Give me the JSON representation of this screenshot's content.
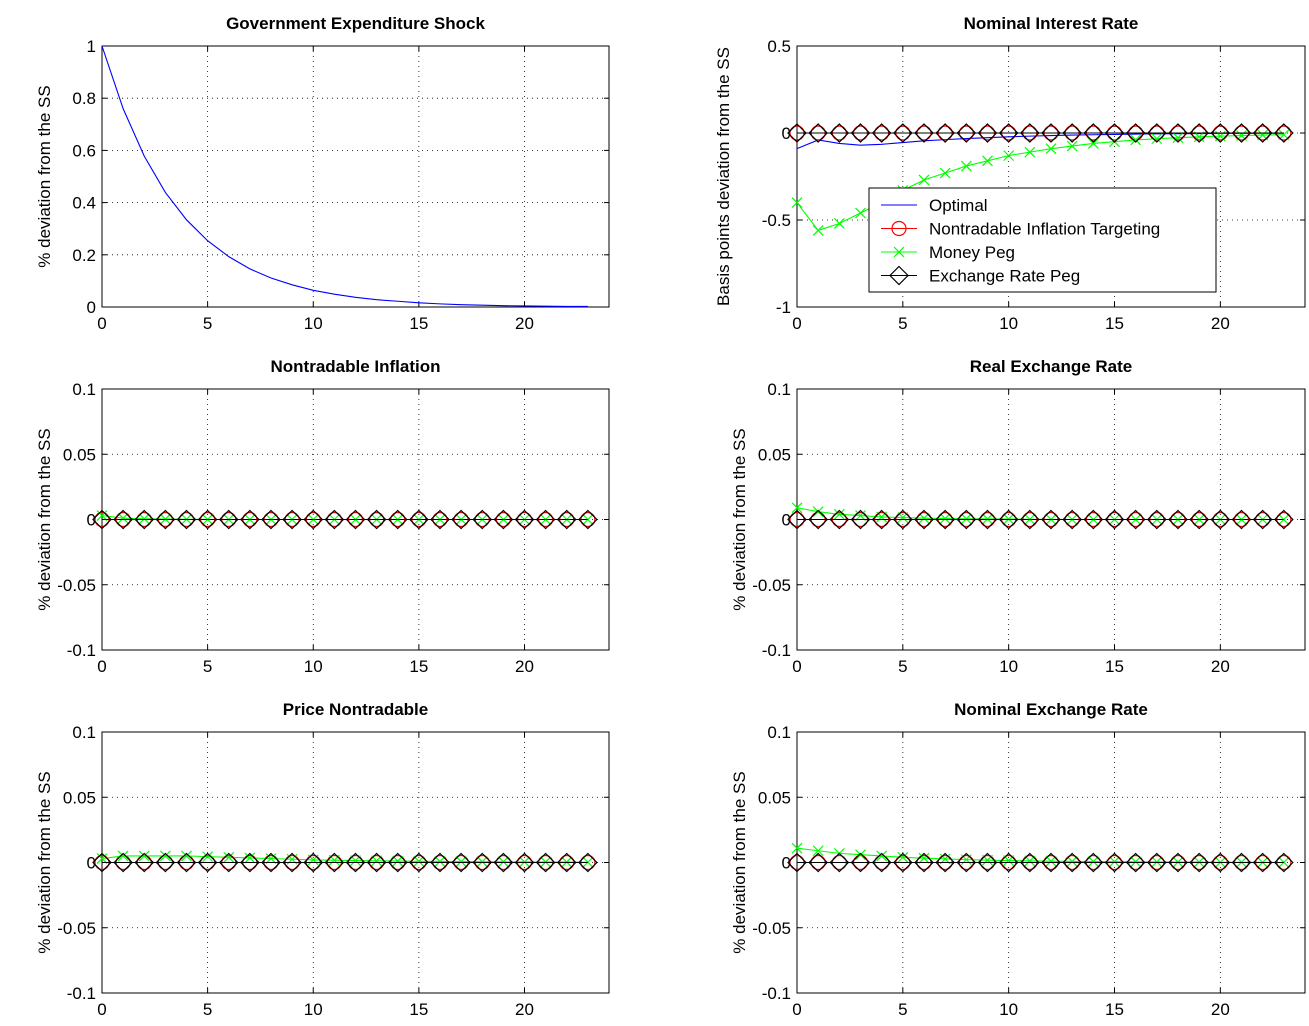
{
  "series_styles": {
    "Optimal": {
      "color": "#0000ff",
      "marker": "none"
    },
    "Nontradable Inflation Targeting": {
      "color": "#ff0000",
      "marker": "circle"
    },
    "Money Peg": {
      "color": "#00ff00",
      "marker": "x"
    },
    "Exchange Rate Peg": {
      "color": "#000000",
      "marker": "diamond"
    }
  },
  "legend": {
    "entries": [
      "Optimal",
      "Nontradable Inflation Targeting",
      "Money Peg",
      "Exchange Rate Peg"
    ],
    "placement": "inside-bottom-center of Nominal Interest Rate panel"
  },
  "chart_data": [
    {
      "type": "line",
      "title": "Government Expenditure Shock",
      "xlabel": "",
      "ylabel": "% deviation from the SS",
      "xlim": [
        0,
        24
      ],
      "ylim": [
        0,
        1
      ],
      "xticks": [
        0,
        5,
        10,
        15,
        20
      ],
      "yticks": [
        0,
        0.2,
        0.4,
        0.6,
        0.8,
        1
      ],
      "ytick_labels": [
        "0",
        "0.2",
        "0.4",
        "0.6",
        "0.8",
        "1"
      ],
      "grid": true,
      "x": [
        0,
        1,
        2,
        3,
        4,
        5,
        6,
        7,
        8,
        9,
        10,
        11,
        12,
        13,
        14,
        15,
        16,
        17,
        18,
        19,
        20,
        21,
        22,
        23
      ],
      "series": [
        {
          "name": "Optimal",
          "values": [
            1,
            0.76,
            0.578,
            0.439,
            0.334,
            0.254,
            0.193,
            0.146,
            0.111,
            0.085,
            0.064,
            0.049,
            0.037,
            0.028,
            0.022,
            0.016,
            0.012,
            0.009,
            0.007,
            0.005,
            0.004,
            0.003,
            0.002,
            0.002
          ]
        }
      ]
    },
    {
      "type": "line",
      "title": "Nominal Interest Rate",
      "xlabel": "",
      "ylabel": "Basis points deviation from the SS",
      "xlim": [
        0,
        24
      ],
      "ylim": [
        -1,
        0.5
      ],
      "xticks": [
        0,
        5,
        10,
        15,
        20
      ],
      "yticks": [
        -1,
        -0.5,
        0,
        0.5
      ],
      "ytick_labels": [
        "-1",
        "-0.5",
        "0",
        "0.5"
      ],
      "grid": true,
      "legend": true,
      "x": [
        0,
        1,
        2,
        3,
        4,
        5,
        6,
        7,
        8,
        9,
        10,
        11,
        12,
        13,
        14,
        15,
        16,
        17,
        18,
        19,
        20,
        21,
        22,
        23
      ],
      "series": [
        {
          "name": "Optimal",
          "values": [
            -0.09,
            -0.04,
            -0.06,
            -0.07,
            -0.065,
            -0.055,
            -0.045,
            -0.038,
            -0.032,
            -0.027,
            -0.022,
            -0.018,
            -0.015,
            -0.012,
            -0.01,
            -0.008,
            -0.006,
            -0.005,
            -0.004,
            -0.003,
            -0.002,
            -0.002,
            -0.001,
            -0.001
          ]
        },
        {
          "name": "Nontradable Inflation Targeting",
          "values": [
            0,
            0,
            0,
            0,
            0,
            0,
            0,
            0,
            0,
            0,
            0,
            0,
            0,
            0,
            0,
            0,
            0,
            0,
            0,
            0,
            0,
            0,
            0,
            0
          ]
        },
        {
          "name": "Money Peg",
          "values": [
            -0.4,
            -0.56,
            -0.52,
            -0.46,
            -0.4,
            -0.33,
            -0.27,
            -0.23,
            -0.19,
            -0.16,
            -0.13,
            -0.11,
            -0.09,
            -0.075,
            -0.06,
            -0.05,
            -0.04,
            -0.033,
            -0.027,
            -0.022,
            -0.018,
            -0.015,
            -0.012,
            -0.01
          ]
        },
        {
          "name": "Exchange Rate Peg",
          "values": [
            0,
            0,
            0,
            0,
            0,
            0,
            0,
            0,
            0,
            0,
            0,
            0,
            0,
            0,
            0,
            0,
            0,
            0,
            0,
            0,
            0,
            0,
            0,
            0
          ]
        }
      ]
    },
    {
      "type": "line",
      "title": "Nontradable Inflation",
      "xlabel": "",
      "ylabel": "% deviation from the SS",
      "xlim": [
        0,
        24
      ],
      "ylim": [
        -0.1,
        0.1
      ],
      "xticks": [
        0,
        5,
        10,
        15,
        20
      ],
      "yticks": [
        -0.1,
        -0.05,
        0,
        0.05,
        0.1
      ],
      "ytick_labels": [
        "-0.1",
        "-0.05",
        "0",
        "0.05",
        "0.1"
      ],
      "grid": true,
      "x": [
        0,
        1,
        2,
        3,
        4,
        5,
        6,
        7,
        8,
        9,
        10,
        11,
        12,
        13,
        14,
        15,
        16,
        17,
        18,
        19,
        20,
        21,
        22,
        23
      ],
      "series": [
        {
          "name": "Optimal",
          "values": [
            0,
            0,
            0,
            0,
            0,
            0,
            0,
            0,
            0,
            0,
            0,
            0,
            0,
            0,
            0,
            0,
            0,
            0,
            0,
            0,
            0,
            0,
            0,
            0
          ]
        },
        {
          "name": "Nontradable Inflation Targeting",
          "values": [
            0,
            0,
            0,
            0,
            0,
            0,
            0,
            0,
            0,
            0,
            0,
            0,
            0,
            0,
            0,
            0,
            0,
            0,
            0,
            0,
            0,
            0,
            0,
            0
          ]
        },
        {
          "name": "Money Peg",
          "values": [
            0.003,
            0.001,
            0.0005,
            0.0003,
            0.0002,
            0.0001,
            0,
            0,
            0,
            0,
            0,
            0,
            0,
            0,
            0,
            0,
            0,
            0,
            0,
            0,
            0,
            0,
            0,
            0
          ]
        },
        {
          "name": "Exchange Rate Peg",
          "values": [
            0,
            0,
            0,
            0,
            0,
            0,
            0,
            0,
            0,
            0,
            0,
            0,
            0,
            0,
            0,
            0,
            0,
            0,
            0,
            0,
            0,
            0,
            0,
            0
          ]
        }
      ]
    },
    {
      "type": "line",
      "title": "Real Exchange Rate",
      "xlabel": "",
      "ylabel": "% deviation from the SS",
      "xlim": [
        0,
        24
      ],
      "ylim": [
        -0.1,
        0.1
      ],
      "xticks": [
        0,
        5,
        10,
        15,
        20
      ],
      "yticks": [
        -0.1,
        -0.05,
        0,
        0.05,
        0.1
      ],
      "ytick_labels": [
        "-0.1",
        "-0.05",
        "0",
        "0.05",
        "0.1"
      ],
      "grid": true,
      "x": [
        0,
        1,
        2,
        3,
        4,
        5,
        6,
        7,
        8,
        9,
        10,
        11,
        12,
        13,
        14,
        15,
        16,
        17,
        18,
        19,
        20,
        21,
        22,
        23
      ],
      "series": [
        {
          "name": "Optimal",
          "values": [
            0,
            0,
            0,
            0,
            0,
            0,
            0,
            0,
            0,
            0,
            0,
            0,
            0,
            0,
            0,
            0,
            0,
            0,
            0,
            0,
            0,
            0,
            0,
            0
          ]
        },
        {
          "name": "Nontradable Inflation Targeting",
          "values": [
            0,
            0,
            0,
            0,
            0,
            0,
            0,
            0,
            0,
            0,
            0,
            0,
            0,
            0,
            0,
            0,
            0,
            0,
            0,
            0,
            0,
            0,
            0,
            0
          ]
        },
        {
          "name": "Money Peg",
          "values": [
            0.009,
            0.006,
            0.004,
            0.003,
            0.002,
            0.0015,
            0.001,
            0.0007,
            0.0005,
            0.0004,
            0.0003,
            0.0002,
            0.0001,
            0,
            0,
            0,
            0,
            0,
            0,
            0,
            0,
            0,
            0,
            0
          ]
        },
        {
          "name": "Exchange Rate Peg",
          "values": [
            0,
            0,
            0,
            0,
            0,
            0,
            0,
            0,
            0,
            0,
            0,
            0,
            0,
            0,
            0,
            0,
            0,
            0,
            0,
            0,
            0,
            0,
            0,
            0
          ]
        }
      ]
    },
    {
      "type": "line",
      "title": "Price Nontradable",
      "xlabel": "",
      "ylabel": "% deviation from the SS",
      "xlim": [
        0,
        24
      ],
      "ylim": [
        -0.1,
        0.1
      ],
      "xticks": [
        0,
        5,
        10,
        15,
        20
      ],
      "yticks": [
        -0.1,
        -0.05,
        0,
        0.05,
        0.1
      ],
      "ytick_labels": [
        "-0.1",
        "-0.05",
        "0",
        "0.05",
        "0.1"
      ],
      "grid": true,
      "x": [
        0,
        1,
        2,
        3,
        4,
        5,
        6,
        7,
        8,
        9,
        10,
        11,
        12,
        13,
        14,
        15,
        16,
        17,
        18,
        19,
        20,
        21,
        22,
        23
      ],
      "series": [
        {
          "name": "Optimal",
          "values": [
            0,
            0,
            0,
            0,
            0,
            0,
            0,
            0,
            0,
            0,
            0,
            0,
            0,
            0,
            0,
            0,
            0,
            0,
            0,
            0,
            0,
            0,
            0,
            0
          ]
        },
        {
          "name": "Nontradable Inflation Targeting",
          "values": [
            0,
            0,
            0,
            0,
            0,
            0,
            0,
            0,
            0,
            0,
            0,
            0,
            0,
            0,
            0,
            0,
            0,
            0,
            0,
            0,
            0,
            0,
            0,
            0
          ]
        },
        {
          "name": "Money Peg",
          "values": [
            0.003,
            0.005,
            0.005,
            0.005,
            0.005,
            0.0045,
            0.004,
            0.0035,
            0.003,
            0.0025,
            0.002,
            0.0018,
            0.0015,
            0.0013,
            0.0011,
            0.0009,
            0.0008,
            0.0007,
            0.0006,
            0.0005,
            0.0004,
            0.0003,
            0.0003,
            0.0002
          ]
        },
        {
          "name": "Exchange Rate Peg",
          "values": [
            0,
            0,
            0,
            0,
            0,
            0,
            0,
            0,
            0,
            0,
            0,
            0,
            0,
            0,
            0,
            0,
            0,
            0,
            0,
            0,
            0,
            0,
            0,
            0
          ]
        }
      ]
    },
    {
      "type": "line",
      "title": "Nominal Exchange Rate",
      "xlabel": "",
      "ylabel": "% deviation from the SS",
      "xlim": [
        0,
        24
      ],
      "ylim": [
        -0.1,
        0.1
      ],
      "xticks": [
        0,
        5,
        10,
        15,
        20
      ],
      "yticks": [
        -0.1,
        -0.05,
        0,
        0.05,
        0.1
      ],
      "ytick_labels": [
        "-0.1",
        "-0.05",
        "0",
        "0.05",
        "0.1"
      ],
      "grid": true,
      "x": [
        0,
        1,
        2,
        3,
        4,
        5,
        6,
        7,
        8,
        9,
        10,
        11,
        12,
        13,
        14,
        15,
        16,
        17,
        18,
        19,
        20,
        21,
        22,
        23
      ],
      "series": [
        {
          "name": "Optimal",
          "values": [
            0,
            0,
            0,
            0,
            0,
            0,
            0,
            0,
            0,
            0,
            0,
            0,
            0,
            0,
            0,
            0,
            0,
            0,
            0,
            0,
            0,
            0,
            0,
            0
          ]
        },
        {
          "name": "Nontradable Inflation Targeting",
          "values": [
            0,
            0,
            0,
            0,
            0,
            0,
            0,
            0,
            0,
            0,
            0,
            0,
            0,
            0,
            0,
            0,
            0,
            0,
            0,
            0,
            0,
            0,
            0,
            0
          ]
        },
        {
          "name": "Money Peg",
          "values": [
            0.011,
            0.009,
            0.007,
            0.006,
            0.005,
            0.004,
            0.0033,
            0.0027,
            0.0022,
            0.0018,
            0.0015,
            0.0012,
            0.001,
            0.0008,
            0.0007,
            0.0006,
            0.0005,
            0.0004,
            0.0003,
            0.0003,
            0.0002,
            0.0002,
            0.0001,
            0.0001
          ]
        },
        {
          "name": "Exchange Rate Peg",
          "values": [
            0,
            0,
            0,
            0,
            0,
            0,
            0,
            0,
            0,
            0,
            0,
            0,
            0,
            0,
            0,
            0,
            0,
            0,
            0,
            0,
            0,
            0,
            0,
            0
          ]
        }
      ]
    }
  ]
}
